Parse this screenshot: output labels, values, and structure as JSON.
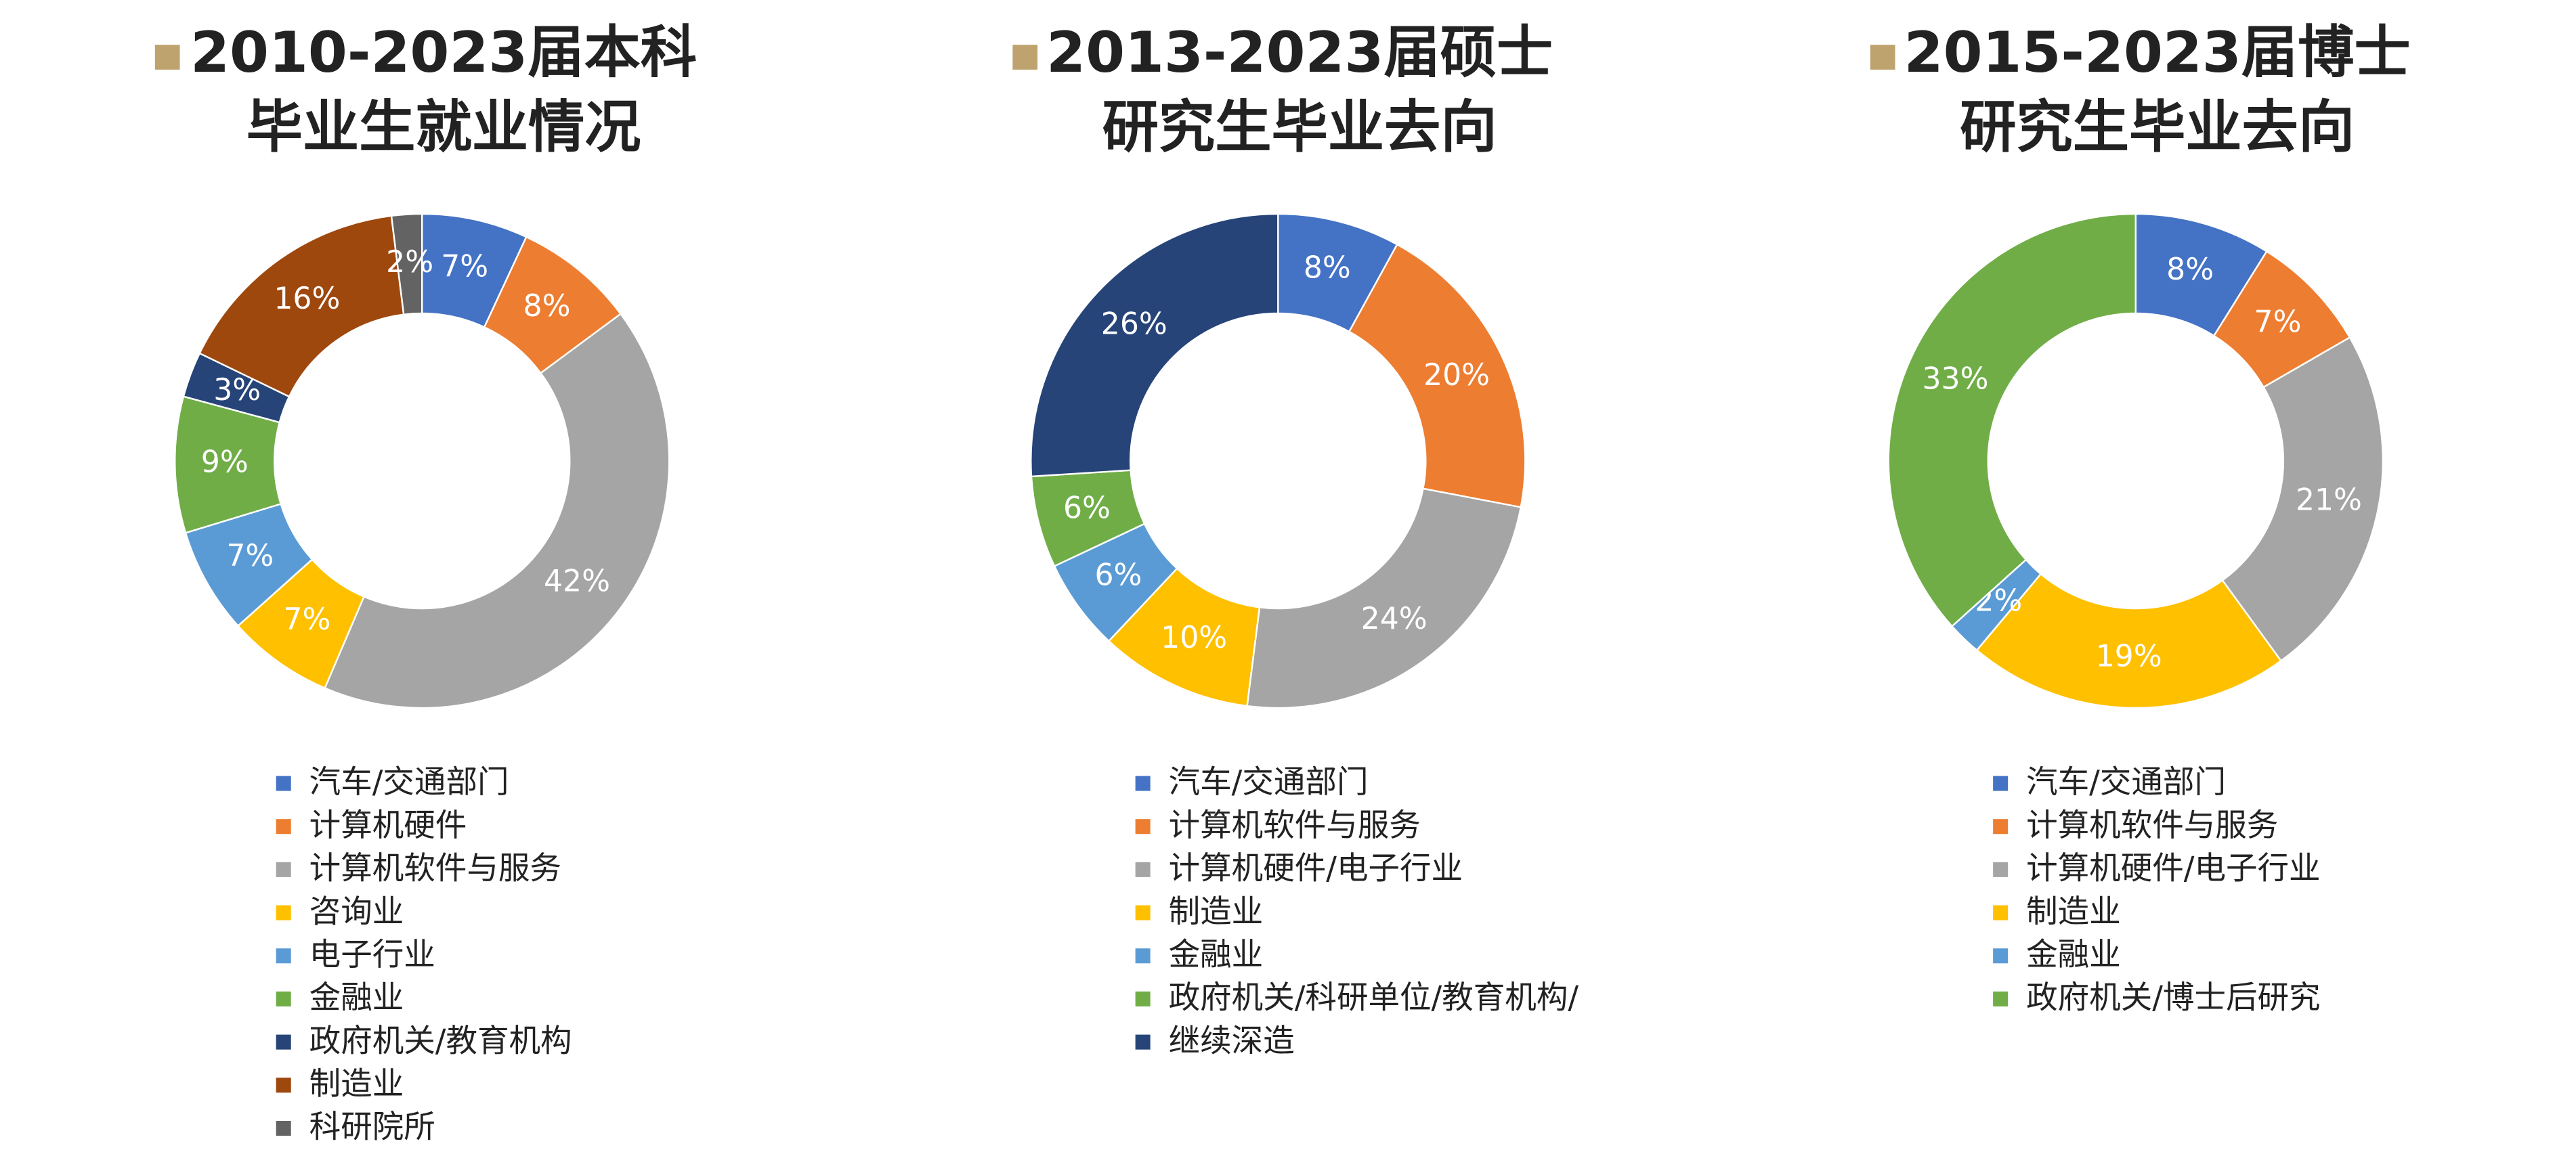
{
  "chart_data": [
    {
      "type": "donut",
      "title": [
        "2010-2023届本科",
        "毕业生就业情况"
      ],
      "categories": [
        "汽车/交通部门",
        "计算机硬件",
        "计算机软件与服务",
        "咨询业",
        "电子行业",
        "金融业",
        "政府机关/教育机构",
        "制造业",
        "科研院所"
      ],
      "values": [
        7,
        8,
        42,
        7,
        7,
        9,
        3,
        16,
        2
      ],
      "value_labels": [
        "7%",
        "8%",
        "42%",
        "7%",
        "7%",
        "9%",
        "3%",
        "16%",
        "2%"
      ],
      "colors": [
        "#4472c4",
        "#ed7d31",
        "#a5a5a5",
        "#ffc000",
        "#5b9bd5",
        "#70ad47",
        "#264478",
        "#9e480e",
        "#636363"
      ]
    },
    {
      "type": "donut",
      "title": [
        "2013-2023届硕士",
        "研究生毕业去向"
      ],
      "categories": [
        "汽车/交通部门",
        "计算机软件与服务",
        "计算机硬件/电子行业",
        "制造业",
        "金融业",
        "政府机关/科研单位/教育机构/",
        "继续深造"
      ],
      "values": [
        8,
        20,
        24,
        10,
        6,
        6,
        26
      ],
      "value_labels": [
        "8%",
        "20%",
        "24%",
        "10%",
        "6%",
        "6%",
        "26%"
      ],
      "colors": [
        "#4472c4",
        "#ed7d31",
        "#a5a5a5",
        "#ffc000",
        "#5b9bd5",
        "#70ad47",
        "#264478"
      ]
    },
    {
      "type": "donut",
      "title": [
        "2015-2023届博士",
        "研究生毕业去向"
      ],
      "categories": [
        "汽车/交通部门",
        "计算机软件与服务",
        "计算机硬件/电子行业",
        "制造业",
        "金融业",
        "政府机关/博士后研究"
      ],
      "values": [
        8,
        7,
        21,
        19,
        2,
        33
      ],
      "value_labels": [
        "8%",
        "7%",
        "21%",
        "19%",
        "2%",
        "33%"
      ],
      "colors": [
        "#4472c4",
        "#ed7d31",
        "#a5a5a5",
        "#ffc000",
        "#5b9bd5",
        "#70ad47"
      ]
    }
  ]
}
